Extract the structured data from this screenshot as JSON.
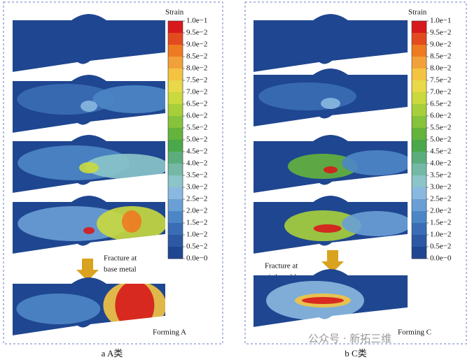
{
  "panels": [
    {
      "caption": "a A类",
      "colorbar_title": "Strain",
      "colorbar_labels": [
        "1.0e−1",
        "9.5e−2",
        "9.0e−2",
        "8.5e−2",
        "8.0e−2",
        "7.5e−2",
        "7.0e−2",
        "6.5e−2",
        "6.0e−2",
        "5.5e−2",
        "5.0e−2",
        "4.5e−2",
        "4.0e−2",
        "3.5e−2",
        "3.0e−2",
        "2.5e−2",
        "2.0e−2",
        "1.5e−2",
        "1.0e−2",
        "0.5e−2",
        "0.0e−0"
      ],
      "annotation": [
        "Fracture at",
        "base metal"
      ],
      "forming": "Forming A"
    },
    {
      "caption": "b C类",
      "colorbar_title": "Strain",
      "colorbar_labels": [
        "1.0e−1",
        "9.5e−2",
        "9.0e−2",
        "8.5e−2",
        "8.0e−2",
        "7.5e−2",
        "7.0e−2",
        "6.5e−2",
        "6.0e−2",
        "5.5e−2",
        "5.0e−2",
        "4.5e−2",
        "4.0e−2",
        "3.5e−2",
        "3.0e−2",
        "2.5e−2",
        "2.0e−2",
        "1.5e−2",
        "1.0e−2",
        "0.5e−2",
        "0.0e−0"
      ],
      "annotation": [
        "Fracture at",
        "girth weld"
      ],
      "forming": "Forming C"
    }
  ],
  "colormap": [
    "#d7191c",
    "#e34a1f",
    "#ee7a21",
    "#f2a13a",
    "#f4c441",
    "#e8d84a",
    "#c9d93e",
    "#a7cf3b",
    "#86c23b",
    "#64b33c",
    "#4aa84a",
    "#5cad7c",
    "#74b8a6",
    "#8bc4c9",
    "#8ab8e0",
    "#6a9fd6",
    "#4c86c6",
    "#3a6db5",
    "#2d58a3",
    "#1f4690"
  ],
  "watermark": "公众号 · 新拓三维"
}
